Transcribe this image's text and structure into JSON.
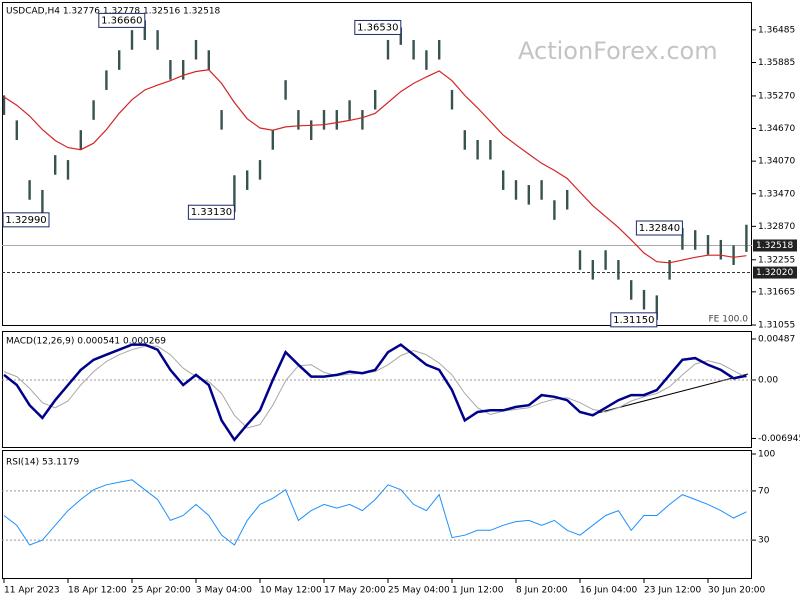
{
  "chart_data": [
    {
      "type": "range",
      "title": "USDCAD,H4 1.32776 1.32778 1.32516 1.32518",
      "watermark": "ActionForex.com",
      "note": "FE 100.0",
      "color": "#37524f",
      "high": [
        1.3528,
        1.3482,
        1.3372,
        1.3354,
        1.3418,
        1.3409,
        1.3464,
        1.3519,
        1.3574,
        1.3611,
        1.3648,
        1.3666,
        1.3648,
        1.3593,
        1.3593,
        1.363,
        1.3611,
        1.3501,
        1.3381,
        1.339,
        1.3409,
        1.3464,
        1.3556,
        1.3501,
        1.3482,
        1.3501,
        1.3501,
        1.3519,
        1.3501,
        1.3538,
        1.363,
        1.3653,
        1.363,
        1.3611,
        1.363,
        1.3538,
        1.3464,
        1.3446,
        1.3446,
        1.339,
        1.3372,
        1.3363,
        1.3372,
        1.3335,
        1.3354,
        1.3243,
        1.3225,
        1.3243,
        1.3225,
        1.3188,
        1.317,
        1.316,
        1.3225,
        1.3284,
        1.328,
        1.3271,
        1.3262,
        1.3252,
        1.329
      ],
      "low": [
        1.3492,
        1.3446,
        1.3336,
        1.3299,
        1.3382,
        1.3373,
        1.3428,
        1.3483,
        1.3538,
        1.3575,
        1.3612,
        1.363,
        1.3612,
        1.3557,
        1.3557,
        1.3594,
        1.3575,
        1.3465,
        1.3313,
        1.3354,
        1.3373,
        1.3428,
        1.352,
        1.3465,
        1.3446,
        1.3465,
        1.3465,
        1.3483,
        1.3465,
        1.3502,
        1.3594,
        1.3621,
        1.3594,
        1.3575,
        1.3594,
        1.3502,
        1.3428,
        1.341,
        1.341,
        1.3354,
        1.3336,
        1.3327,
        1.3336,
        1.3299,
        1.3318,
        1.3207,
        1.3189,
        1.3207,
        1.3189,
        1.3152,
        1.3134,
        1.3115,
        1.3189,
        1.3244,
        1.3244,
        1.3235,
        1.3226,
        1.3216,
        1.324
      ],
      "ma": {
        "color": "#d42424",
        "values": [
          1.3525,
          1.351,
          1.349,
          1.3465,
          1.3445,
          1.3432,
          1.3428,
          1.344,
          1.3465,
          1.3495,
          1.352,
          1.3538,
          1.3547,
          1.3555,
          1.3565,
          1.3572,
          1.3575,
          1.355,
          1.3515,
          1.3485,
          1.3468,
          1.3464,
          1.347,
          1.3472,
          1.3473,
          1.3474,
          1.3478,
          1.3482,
          1.3487,
          1.3495,
          1.3515,
          1.3535,
          1.355,
          1.3562,
          1.3573,
          1.3555,
          1.3528,
          1.3505,
          1.348,
          1.3455,
          1.3437,
          1.342,
          1.3403,
          1.339,
          1.3375,
          1.335,
          1.3325,
          1.3305,
          1.3285,
          1.3262,
          1.3238,
          1.3222,
          1.322,
          1.3225,
          1.323,
          1.3234,
          1.3234,
          1.323,
          1.3233
        ]
      },
      "annotations": [
        {
          "x": 11,
          "value": 1.3666,
          "label": "1.36660"
        },
        {
          "x": 31,
          "value": 1.3653,
          "label": "1.36530"
        },
        {
          "x": 3,
          "value": 1.3299,
          "label": "1.32990"
        },
        {
          "x": 18,
          "value": 1.3313,
          "label": "1.33130"
        },
        {
          "x": 53,
          "value": 1.3284,
          "label": "1.32840"
        },
        {
          "x": 51,
          "value": 1.3115,
          "label": "1.31150"
        }
      ],
      "price_lines": [
        {
          "value": 1.32518,
          "label": "1.32518",
          "style": "solid"
        },
        {
          "value": 1.3202,
          "label": "1.32020",
          "style": "dashed"
        }
      ],
      "ylim": [
        1.31055,
        1.3698
      ],
      "yticks": [
        1.36485,
        1.35885,
        {
          "value": 1.3527,
          "label": "1.35270"
        },
        {
          "value": 1.3467,
          "label": "1.34670"
        },
        {
          "value": 1.3407,
          "label": "1.34070"
        },
        {
          "value": 1.3347,
          "label": "1.33470"
        },
        {
          "value": 1.3287,
          "label": "1.32870"
        },
        1.32255,
        1.31665,
        1.31055
      ]
    },
    {
      "type": "macd",
      "title": "MACD(12,26,9) 0.000541 0.000269",
      "color": "#00008b",
      "values": [
        0.0006,
        -0.0006,
        -0.003,
        -0.0045,
        -0.0024,
        -0.0006,
        0.0012,
        0.0024,
        0.003,
        0.0036,
        0.0042,
        0.0042,
        0.0036,
        0.0012,
        -0.0006,
        0.0006,
        -0.0006,
        -0.0048,
        -0.0071,
        -0.0053,
        -0.0036,
        0,
        0.0033,
        0.0018,
        0.0004,
        0.0004,
        0.0006,
        0.001,
        0.0008,
        0.0012,
        0.0033,
        0.0042,
        0.003,
        0.0018,
        0.0012,
        -0.0012,
        -0.0048,
        -0.0038,
        -0.0036,
        -0.0036,
        -0.0032,
        -0.003,
        -0.0018,
        -0.002,
        -0.0024,
        -0.0038,
        -0.0042,
        -0.0033,
        -0.0024,
        -0.0018,
        -0.0018,
        -0.0012,
        0.0006,
        0.0024,
        0.0026,
        0.0018,
        0.0012,
        0.0002,
        0.0005
      ],
      "signal": {
        "color": "#a8a8a8",
        "values": [
          0.001,
          0.0004,
          -0.001,
          -0.0027,
          -0.0033,
          -0.0025,
          -0.0006,
          0.001,
          0.0022,
          0.003,
          0.0036,
          0.004,
          0.004,
          0.003,
          0.0014,
          0.0004,
          -0.0002,
          -0.0016,
          -0.0042,
          -0.0057,
          -0.0053,
          -0.003,
          -0.0001,
          0.0017,
          0.0018,
          0.0009,
          0.0005,
          0.0007,
          0.0008,
          0.001,
          0.0018,
          0.0029,
          0.0035,
          0.003,
          0.002,
          0.0006,
          -0.0016,
          -0.0033,
          -0.0041,
          -0.0037,
          -0.0035,
          -0.0033,
          -0.0027,
          -0.0023,
          -0.0021,
          -0.0027,
          -0.0035,
          -0.0038,
          -0.0033,
          -0.0025,
          -0.002,
          -0.0016,
          -0.0008,
          0.0006,
          0.0019,
          0.0023,
          0.0019,
          0.0011,
          0.0003
        ]
      },
      "levels": [
        0
      ],
      "ylim": [
        -0.00796,
        0.00558
      ],
      "yticks": [
        0.00487,
        {
          "value": 0,
          "label": "0.00"
        },
        -0.006945
      ]
    },
    {
      "type": "line",
      "title": "RSI(14) 53.1179",
      "color": "#1e90ff",
      "values": [
        50,
        42,
        26,
        30,
        42,
        54,
        63,
        71,
        75,
        77,
        79,
        71,
        63,
        46,
        50,
        59,
        50,
        34,
        26,
        46,
        59,
        64,
        71,
        46,
        54,
        59,
        56,
        59,
        54,
        63,
        75,
        71,
        59,
        54,
        67,
        32,
        34,
        38,
        38,
        42,
        45,
        46,
        42,
        46,
        38,
        34,
        42,
        50,
        54,
        38,
        50,
        50,
        59,
        67,
        63,
        59,
        54,
        48,
        53
      ],
      "levels": [
        70,
        30
      ],
      "ylim": [
        0,
        100
      ],
      "yticks": [
        100,
        70,
        30
      ],
      "categories": [
        "11 Apr 2023",
        null,
        null,
        null,
        null,
        "18 Apr 12:00",
        null,
        null,
        null,
        null,
        "25 Apr 20:00",
        null,
        null,
        null,
        null,
        "3 May 04:00",
        null,
        null,
        null,
        null,
        "10 May 12:00",
        null,
        null,
        null,
        null,
        "17 May 20:00",
        null,
        null,
        null,
        null,
        "25 May 04:00",
        null,
        null,
        null,
        null,
        "1 Jun 12:00",
        null,
        null,
        null,
        null,
        "8 Jun 20:00",
        null,
        null,
        null,
        null,
        "16 Jun 04:00",
        null,
        null,
        null,
        null,
        "23 Jun 12:00",
        null,
        null,
        null,
        null,
        "30 Jun 20:00",
        null,
        null,
        null
      ]
    }
  ]
}
